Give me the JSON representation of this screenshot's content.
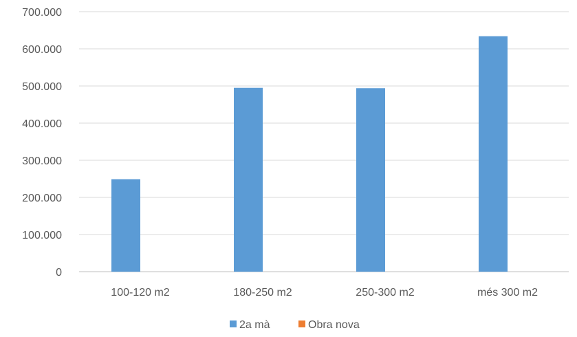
{
  "chart_data": {
    "type": "bar",
    "categories": [
      "100-120 m2",
      "180-250 m2",
      "250-300 m2",
      "més 300 m2"
    ],
    "series": [
      {
        "name": "2a mà",
        "color": "#5B9BD5",
        "values": [
          249000,
          495000,
          494000,
          634000
        ]
      },
      {
        "name": "Obra nova",
        "color": "#ED7D31",
        "values": [
          0,
          0,
          0,
          0
        ]
      }
    ],
    "ylim": [
      0,
      700000
    ],
    "yticks": [
      "0",
      "100.000",
      "200.000",
      "300.000",
      "400.000",
      "500.000",
      "600.000",
      "700.000"
    ],
    "grid": true,
    "legend": "bottom"
  }
}
